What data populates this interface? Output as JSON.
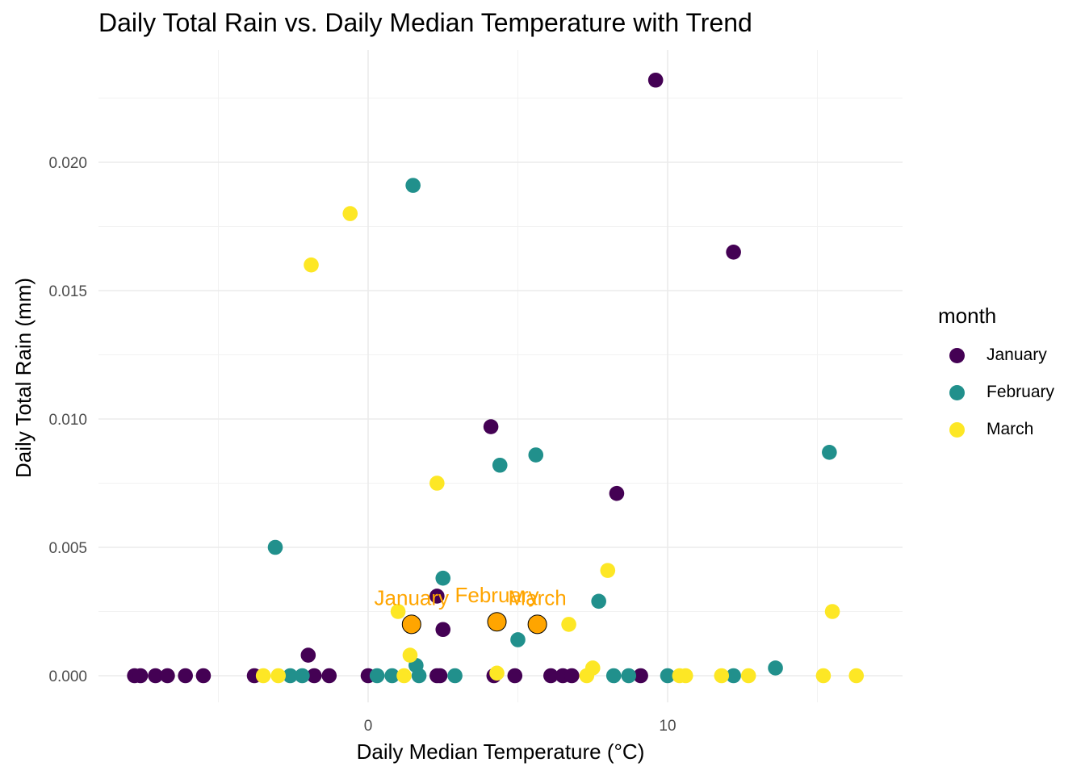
{
  "chart_data": {
    "type": "scatter",
    "title": "Daily Total Rain vs. Daily Median Temperature with Trend",
    "xlabel": "Daily Median Temperature (°C)",
    "ylabel": "Daily Total Rain (mm)",
    "xlim": [
      -9.0,
      18.0
    ],
    "ylim": [
      -0.001,
      0.0243
    ],
    "x_ticks": [
      0,
      10
    ],
    "x_tick_labels": [
      "0",
      "10"
    ],
    "y_ticks": [
      0.0,
      0.005,
      0.01,
      0.015,
      0.02
    ],
    "y_tick_labels": [
      "0.000",
      "0.005",
      "0.010",
      "0.015",
      "0.020"
    ],
    "grid": true,
    "legend_title": "month",
    "legend_position": "right",
    "series": [
      {
        "name": "January",
        "color": "#440154",
        "points": [
          [
            -7.8,
            0.0
          ],
          [
            -7.6,
            0.0
          ],
          [
            -7.1,
            0.0
          ],
          [
            -6.7,
            0.0
          ],
          [
            -6.1,
            0.0
          ],
          [
            -5.5,
            0.0
          ],
          [
            -3.8,
            0.0
          ],
          [
            -2.0,
            0.0008
          ],
          [
            -1.8,
            0.0
          ],
          [
            -1.3,
            0.0
          ],
          [
            0.0,
            0.0
          ],
          [
            2.3,
            0.0031
          ],
          [
            2.5,
            0.0018
          ],
          [
            2.3,
            0.0
          ],
          [
            2.4,
            0.0
          ],
          [
            4.1,
            0.0097
          ],
          [
            4.2,
            0.0
          ],
          [
            4.9,
            0.0
          ],
          [
            6.1,
            0.0
          ],
          [
            6.5,
            0.0
          ],
          [
            6.8,
            0.0
          ],
          [
            8.3,
            0.0071
          ],
          [
            9.1,
            0.0
          ],
          [
            9.6,
            0.0232
          ],
          [
            12.2,
            0.0165
          ]
        ]
      },
      {
        "name": "February",
        "color": "#21908C",
        "points": [
          [
            -3.1,
            0.005
          ],
          [
            -2.6,
            0.0
          ],
          [
            -2.2,
            0.0
          ],
          [
            0.3,
            0.0
          ],
          [
            0.8,
            0.0
          ],
          [
            1.5,
            0.0191
          ],
          [
            1.6,
            0.0004
          ],
          [
            1.7,
            0.0
          ],
          [
            2.5,
            0.0038
          ],
          [
            2.9,
            0.0
          ],
          [
            4.4,
            0.0082
          ],
          [
            5.0,
            0.0014
          ],
          [
            5.6,
            0.0086
          ],
          [
            7.7,
            0.0029
          ],
          [
            8.2,
            0.0
          ],
          [
            8.7,
            0.0
          ],
          [
            10.0,
            0.0
          ],
          [
            12.2,
            0.0
          ],
          [
            13.6,
            0.0003
          ],
          [
            15.4,
            0.0087
          ]
        ]
      },
      {
        "name": "March",
        "color": "#FDE725",
        "points": [
          [
            -3.5,
            0.0
          ],
          [
            -3.0,
            0.0
          ],
          [
            -1.9,
            0.016
          ],
          [
            -0.6,
            0.018
          ],
          [
            1.0,
            0.0025
          ],
          [
            1.4,
            0.0008
          ],
          [
            1.2,
            0.0
          ],
          [
            2.3,
            0.0075
          ],
          [
            4.3,
            0.0001
          ],
          [
            6.7,
            0.002
          ],
          [
            7.3,
            0.0
          ],
          [
            7.5,
            0.0003
          ],
          [
            8.0,
            0.0041
          ],
          [
            10.4,
            0.0
          ],
          [
            10.6,
            0.0
          ],
          [
            11.8,
            0.0
          ],
          [
            12.7,
            0.0
          ],
          [
            15.2,
            0.0
          ],
          [
            15.5,
            0.0025
          ],
          [
            16.3,
            0.0
          ]
        ]
      }
    ],
    "trend_points": {
      "color": "#FFA500",
      "points": [
        {
          "label": "January",
          "x": 1.45,
          "y": 0.002
        },
        {
          "label": "February",
          "x": 4.3,
          "y": 0.0021
        },
        {
          "label": "March",
          "x": 5.65,
          "y": 0.002
        }
      ]
    }
  }
}
